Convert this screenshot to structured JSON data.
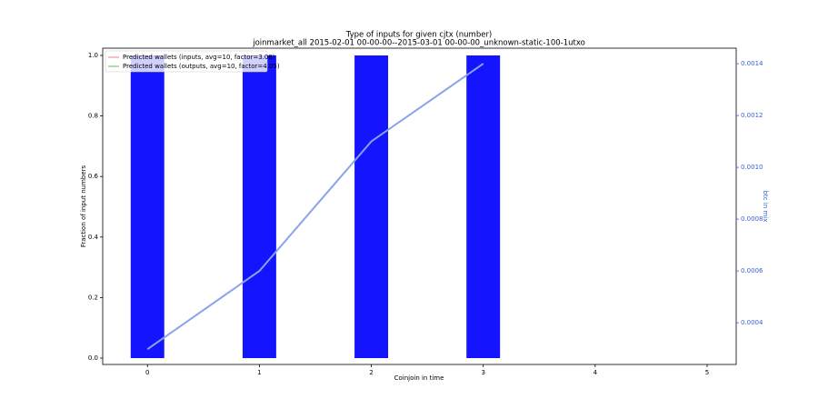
{
  "chart_data": {
    "type": "bar",
    "title": "Type of inputs for given cjtx (number)",
    "subtitle": "joinmarket_all 2015-02-01 00-00-00--2015-03-01 00-00-00_unknown-static-100-1utxo",
    "xlabel": "Coinjoin in time",
    "ylabel": "Fraction of input numbers",
    "y2label": "btc in mix",
    "x": [
      0,
      1,
      2,
      3
    ],
    "xlim": [
      -0.4,
      5.26
    ],
    "xticks": [
      0,
      1,
      2,
      3,
      4,
      5
    ],
    "ylim": [
      -0.021,
      1.024
    ],
    "yticks": [
      {
        "value": 0,
        "label": "0.0"
      },
      {
        "value": 0.2,
        "label": "0.2"
      },
      {
        "value": 0.4,
        "label": "0.4"
      },
      {
        "value": 0.6,
        "label": "0.6"
      },
      {
        "value": 0.8,
        "label": "0.8"
      },
      {
        "value": 1,
        "label": "1.0"
      }
    ],
    "y2lim": [
      0.000239,
      0.00146
    ],
    "y2ticks": [
      0.0004,
      0.0006,
      0.0008,
      {
        "value": 0.001,
        "label": "0.0010"
      },
      0.0012,
      0.0014
    ],
    "y2color": "#3a62d6",
    "series": [
      {
        "type": "bar",
        "color": "#1414ff",
        "values": [
          1,
          1,
          1,
          1
        ]
      },
      {
        "type": "line",
        "axis": "y2",
        "color": "#8aa3ec",
        "values": [
          0.000298,
          0.0006,
          0.0011,
          0.0014
        ]
      }
    ],
    "legend": [
      {
        "name": "Predicted wallets (inputs, avg=10, factor=3.08)",
        "color": "#f08080"
      },
      {
        "name": "Predicted wallets (outputs, avg=10, factor=4.05)",
        "color": "#66bb66"
      }
    ],
    "legend_position": "upper left"
  }
}
